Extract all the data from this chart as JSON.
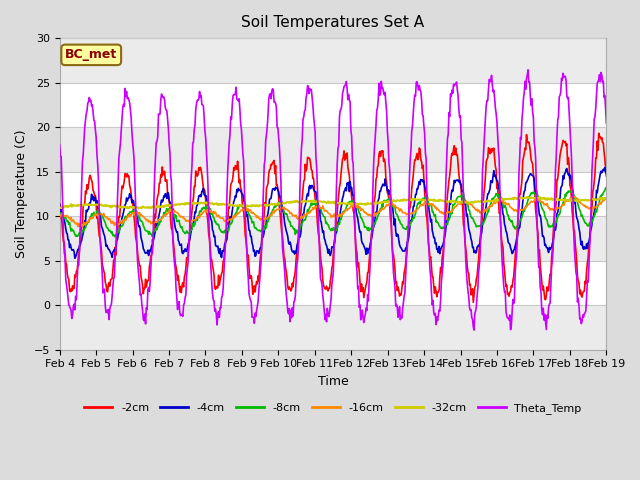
{
  "title": "Soil Temperatures Set A",
  "xlabel": "Time",
  "ylabel": "Soil Temperature (C)",
  "ylim": [
    -5,
    30
  ],
  "background_color": "#dcdcdc",
  "plot_bg_color": "#dcdcdc",
  "axes_bg": "#ffffff",
  "annotation_text": "BC_met",
  "annotation_bg": "#ffffa0",
  "annotation_border": "#8b6914",
  "series": {
    "-2cm": {
      "color": "#ff0000",
      "lw": 1.2
    },
    "-4cm": {
      "color": "#0000cc",
      "lw": 1.2
    },
    "-8cm": {
      "color": "#00bb00",
      "lw": 1.2
    },
    "-16cm": {
      "color": "#ff8800",
      "lw": 1.2
    },
    "-32cm": {
      "color": "#cccc00",
      "lw": 1.5
    },
    "Theta_Temp": {
      "color": "#cc00ff",
      "lw": 1.2
    }
  },
  "xtick_labels": [
    "Feb 4",
    "Feb 5",
    "Feb 6",
    "Feb 7",
    "Feb 8",
    "Feb 9",
    "Feb 10",
    "Feb 11",
    "Feb 12",
    "Feb 13",
    "Feb 14",
    "Feb 15",
    "Feb 16",
    "Feb 17",
    "Feb 18",
    "Feb 19"
  ],
  "ytick_vals": [
    -5,
    0,
    5,
    10,
    15,
    20,
    25,
    30
  ],
  "grid_color": "#d0d0d0",
  "legend_order": [
    "-2cm",
    "-4cm",
    "-8cm",
    "-16cm",
    "-32cm",
    "Theta_Temp"
  ]
}
